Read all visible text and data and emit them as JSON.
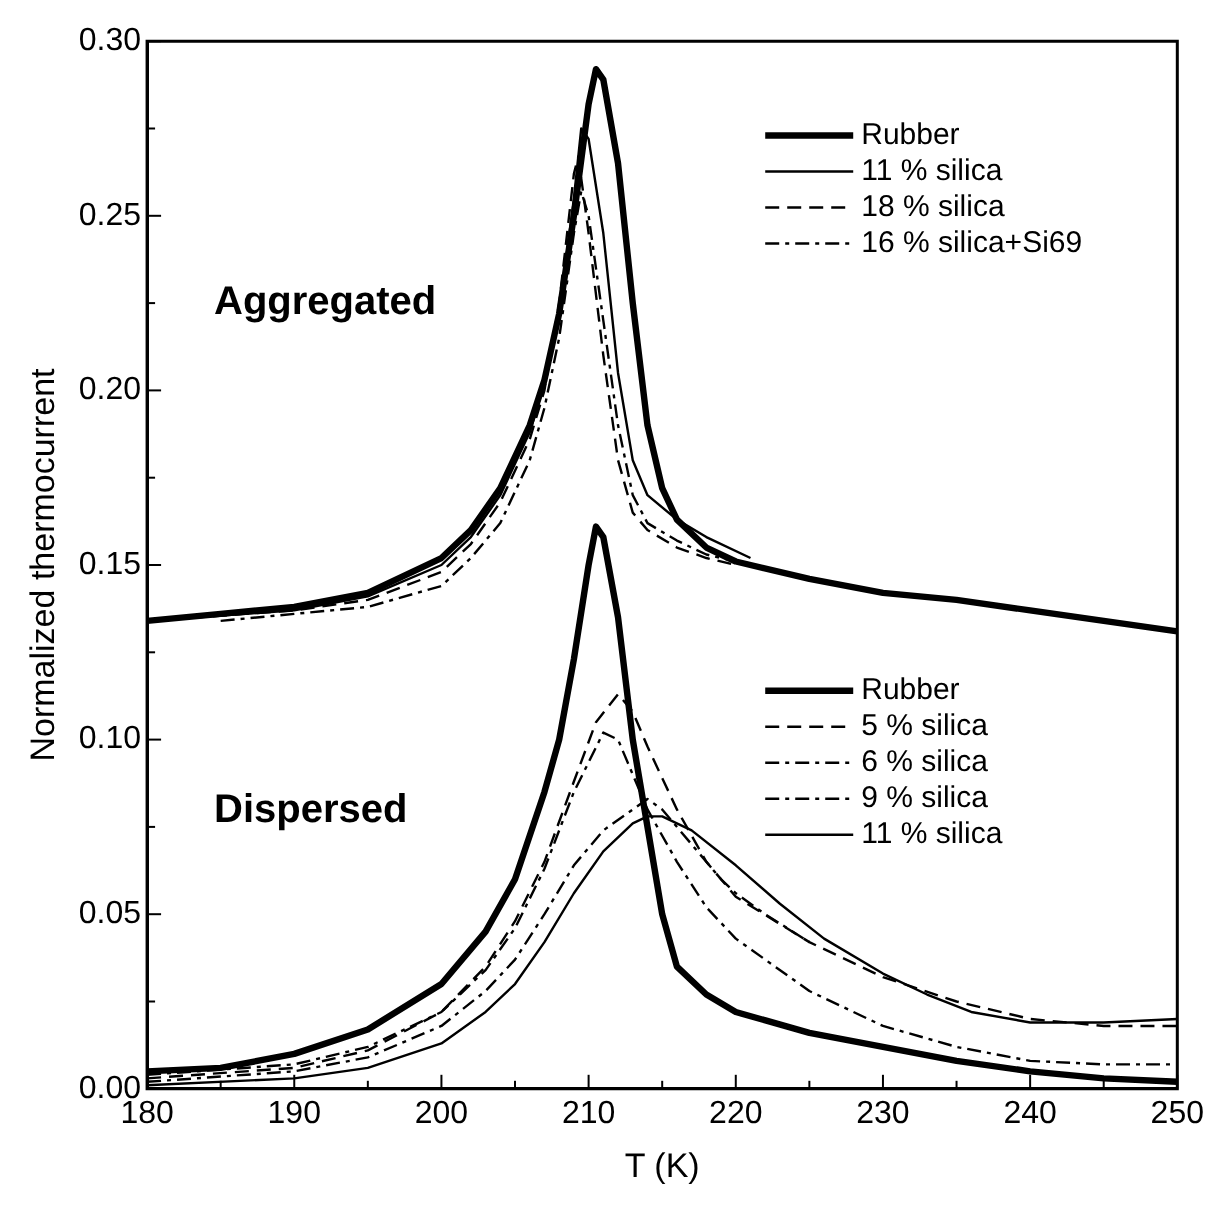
{
  "chart_data": {
    "type": "line",
    "xlabel": "T (K)",
    "ylabel": "Normalized thermocurrent",
    "xlim": [
      180,
      250
    ],
    "xticks": [
      180,
      190,
      200,
      210,
      220,
      230,
      240,
      250
    ],
    "ylim": [
      0,
      0.3
    ],
    "yticks": [
      {
        "value": 0,
        "label": "0.00"
      },
      {
        "value": 0.05,
        "label": "0.05"
      },
      {
        "value": 0.1,
        "label": "0.10"
      },
      {
        "value": 0.15,
        "label": "0.15"
      },
      {
        "value": 0.2,
        "label": "0.20"
      },
      {
        "value": 0.25,
        "label": "0.25"
      },
      {
        "value": 0.3,
        "label": "0.30"
      }
    ],
    "grid": false,
    "legend": "right",
    "marker": "none",
    "annotations": [
      "Aggregated",
      "Dispersed"
    ],
    "series": [
      {
        "name": "Rubber",
        "color": "#000000",
        "line_style": "solid",
        "x": [
          180,
          185,
          190,
          195,
          200,
          202,
          204,
          206,
          207,
          208,
          209,
          210,
          210.5,
          211,
          212,
          213,
          214,
          215,
          216,
          218,
          220,
          225,
          230,
          235,
          240,
          245,
          250
        ],
        "values": [
          0.134,
          0.136,
          0.138,
          0.142,
          0.152,
          0.16,
          0.172,
          0.19,
          0.203,
          0.222,
          0.25,
          0.282,
          0.292,
          0.289,
          0.265,
          0.225,
          0.19,
          0.172,
          0.163,
          0.155,
          0.151,
          0.146,
          0.142,
          0.14,
          0.137,
          0.134,
          0.131
        ]
      },
      {
        "name": "11 % silica",
        "color": "#000000",
        "line_style": "solid",
        "x": [
          180,
          190,
          195,
          200,
          202,
          204,
          206,
          207,
          208,
          209,
          209.5,
          210,
          211,
          212,
          213,
          214,
          216,
          218,
          221
        ],
        "values": [
          0.134,
          0.137,
          0.141,
          0.15,
          0.158,
          0.17,
          0.188,
          0.202,
          0.222,
          0.255,
          0.275,
          0.272,
          0.245,
          0.205,
          0.18,
          0.17,
          0.163,
          0.158,
          0.152
        ]
      },
      {
        "name": "18 % silica",
        "color": "#000000",
        "line_style": "dashed",
        "x": [
          180,
          190,
          195,
          200,
          202,
          204,
          206,
          207,
          208,
          209,
          209.3,
          210,
          211,
          212,
          213,
          214,
          216,
          218,
          220
        ],
        "values": [
          0.134,
          0.137,
          0.14,
          0.148,
          0.156,
          0.168,
          0.186,
          0.2,
          0.225,
          0.262,
          0.267,
          0.245,
          0.21,
          0.18,
          0.165,
          0.16,
          0.155,
          0.152,
          0.15
        ]
      },
      {
        "name": "16 % silica+Si69",
        "color": "#000000",
        "line_style": "dotted",
        "x": [
          185,
          190,
          195,
          200,
          202,
          204,
          206,
          207,
          208,
          209,
          209.5,
          210,
          211,
          212,
          213,
          214,
          216,
          218,
          220
        ],
        "values": [
          0.134,
          0.136,
          0.138,
          0.144,
          0.152,
          0.162,
          0.18,
          0.195,
          0.215,
          0.245,
          0.257,
          0.25,
          0.22,
          0.19,
          0.17,
          0.162,
          0.157,
          0.153,
          0.151
        ]
      },
      {
        "name": "Rubber",
        "color": "#000000",
        "line_style": "solid",
        "x": [
          180,
          185,
          190,
          195,
          200,
          203,
          205,
          207,
          208,
          209,
          210,
          210.5,
          211,
          212,
          213,
          214,
          215,
          216,
          218,
          220,
          225,
          230,
          235,
          240,
          245,
          250
        ],
        "values": [
          0.005,
          0.006,
          0.01,
          0.017,
          0.03,
          0.045,
          0.06,
          0.085,
          0.1,
          0.123,
          0.15,
          0.161,
          0.158,
          0.135,
          0.1,
          0.075,
          0.05,
          0.035,
          0.027,
          0.022,
          0.016,
          0.012,
          0.008,
          0.005,
          0.003,
          0.002
        ]
      },
      {
        "name": "5 % silica",
        "color": "#000000",
        "line_style": "dashed",
        "x": [
          180,
          190,
          195,
          200,
          203,
          205,
          207,
          209,
          210.5,
          212,
          213,
          214,
          216,
          218,
          220,
          225,
          230,
          235,
          240,
          245,
          250
        ],
        "values": [
          0.003,
          0.006,
          0.011,
          0.022,
          0.035,
          0.048,
          0.065,
          0.088,
          0.105,
          0.113,
          0.108,
          0.098,
          0.08,
          0.065,
          0.055,
          0.042,
          0.032,
          0.025,
          0.02,
          0.018,
          0.018
        ]
      },
      {
        "name": "6 % silica",
        "color": "#000000",
        "line_style": "dotted",
        "x": [
          180,
          190,
          195,
          200,
          203,
          205,
          207,
          209,
          211,
          212,
          213,
          214,
          216,
          218,
          220,
          225,
          230,
          235,
          240,
          245,
          250
        ],
        "values": [
          0.004,
          0.007,
          0.012,
          0.022,
          0.034,
          0.046,
          0.063,
          0.085,
          0.102,
          0.1,
          0.09,
          0.08,
          0.065,
          0.052,
          0.043,
          0.028,
          0.018,
          0.012,
          0.008,
          0.007,
          0.007
        ]
      },
      {
        "name": "9 % silica",
        "color": "#000000",
        "line_style": "dotted",
        "x": [
          180,
          190,
          195,
          200,
          203,
          205,
          207,
          209,
          211,
          213,
          214,
          215,
          217,
          219,
          220,
          222,
          225
        ],
        "values": [
          0.002,
          0.005,
          0.009,
          0.018,
          0.028,
          0.037,
          0.05,
          0.064,
          0.074,
          0.08,
          0.083,
          0.08,
          0.07,
          0.06,
          0.056,
          0.05,
          0.042
        ]
      },
      {
        "name": "11 % silica",
        "color": "#000000",
        "line_style": "solid",
        "x": [
          180,
          190,
          195,
          200,
          203,
          205,
          207,
          209,
          211,
          213,
          214,
          215,
          217,
          220,
          223,
          226,
          230,
          233,
          236,
          240,
          245,
          250
        ],
        "values": [
          0.001,
          0.003,
          0.006,
          0.013,
          0.022,
          0.03,
          0.042,
          0.056,
          0.068,
          0.076,
          0.078,
          0.078,
          0.074,
          0.064,
          0.053,
          0.043,
          0.033,
          0.027,
          0.022,
          0.019,
          0.019,
          0.02
        ]
      }
    ]
  }
}
